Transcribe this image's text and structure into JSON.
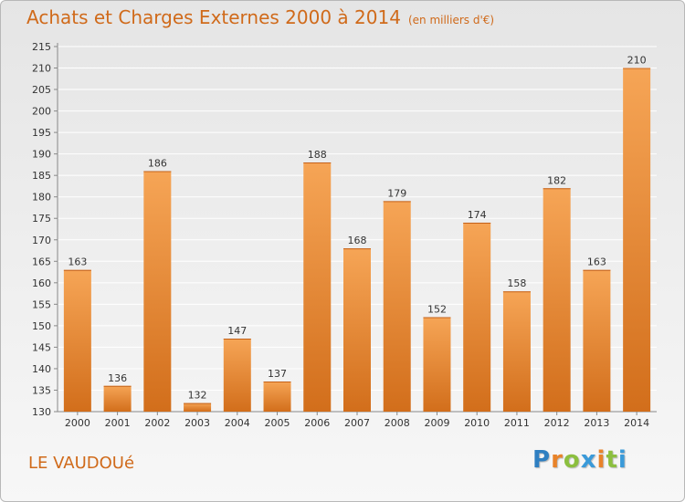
{
  "chart_title": "Achats et Charges Externes 2000 à 2014",
  "chart_unit": "(en milliers d'€)",
  "location": "LE VAUDOUé",
  "logo": {
    "letters": [
      "P",
      "r",
      "o",
      "x",
      "i",
      "t",
      "i"
    ],
    "colors": [
      "#2f7fc1",
      "#e8832a",
      "#8cbf3f",
      "#3a9ad9",
      "#e8832a",
      "#8cbf3f",
      "#3a9ad9"
    ]
  },
  "colors": {
    "bar_top": "#f6a556",
    "bar_bottom": "#d26e1b",
    "title": "#d06a1a"
  },
  "chart_data": {
    "type": "bar",
    "categories": [
      "2000",
      "2001",
      "2002",
      "2003",
      "2004",
      "2005",
      "2006",
      "2007",
      "2008",
      "2009",
      "2010",
      "2011",
      "2012",
      "2013",
      "2014"
    ],
    "values": [
      163,
      136,
      186,
      132,
      147,
      137,
      188,
      168,
      179,
      152,
      174,
      158,
      182,
      163,
      210
    ],
    "ylim": [
      130,
      215
    ],
    "yticks": [
      130,
      135,
      140,
      145,
      150,
      155,
      160,
      165,
      170,
      175,
      180,
      185,
      190,
      195,
      200,
      205,
      210,
      215
    ],
    "grid": true
  }
}
